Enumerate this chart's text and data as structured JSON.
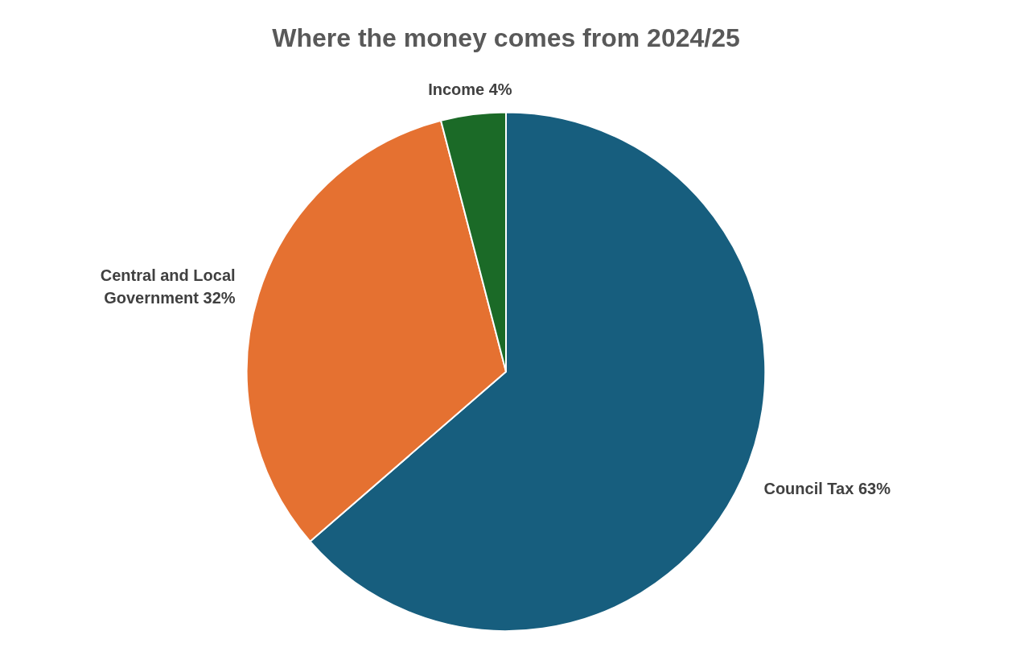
{
  "chart_data": {
    "type": "pie",
    "title": "Where the money comes from 2024/25",
    "categories": [
      "Council Tax",
      "Central and Local Government",
      "Income"
    ],
    "values": [
      63,
      32,
      4
    ],
    "value_labels": [
      "63%",
      "32%",
      "4%"
    ],
    "colors": [
      "#175e7e",
      "#e57131",
      "#1b6a27"
    ],
    "legend": false
  }
}
